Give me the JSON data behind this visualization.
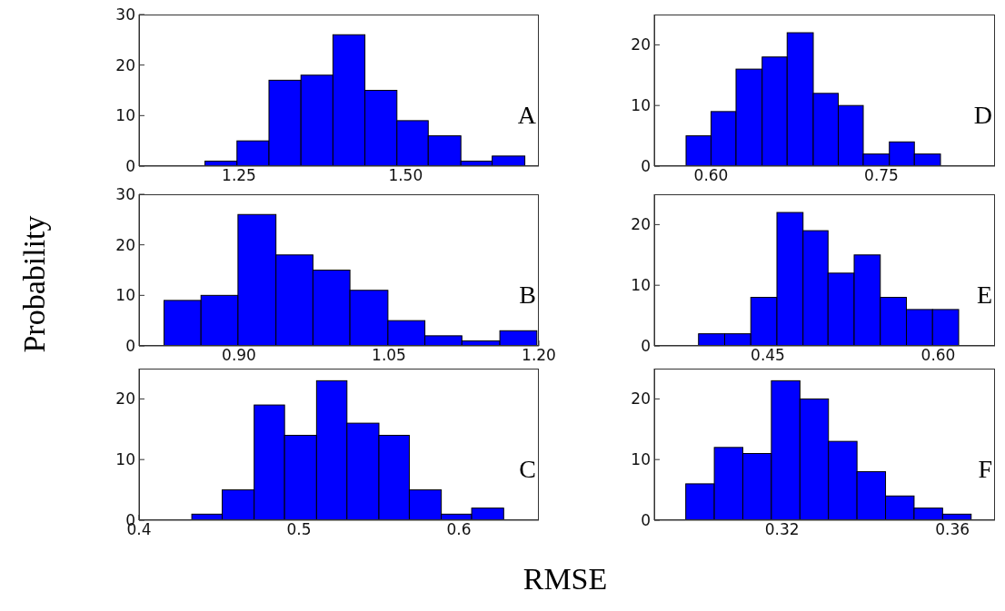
{
  "chart_data": [
    {
      "type": "histogram",
      "xlabel": "RMSE",
      "ylabel": "Probability",
      "annotations": [
        "A"
      ],
      "color": "#0000ff",
      "bins": [
        1.199,
        1.247,
        1.295,
        1.343,
        1.391,
        1.439,
        1.487,
        1.534,
        1.583,
        1.63,
        1.679
      ],
      "values": [
        1,
        5,
        17,
        18,
        26,
        15,
        9,
        6,
        1,
        2
      ],
      "xlim": [
        1.1,
        1.7
      ],
      "xticks": [
        {
          "value": 1.25,
          "label": "1.25"
        },
        {
          "value": 1.5,
          "label": "1.50"
        }
      ],
      "ylim": [
        0,
        30
      ],
      "yticks": [
        0,
        10,
        20,
        30
      ]
    },
    {
      "type": "histogram",
      "annotations": [
        "D"
      ],
      "color": "#0000ff",
      "bins": [
        0.578,
        0.6,
        0.622,
        0.645,
        0.667,
        0.69,
        0.712,
        0.734,
        0.757,
        0.779,
        0.802
      ],
      "values": [
        5,
        9,
        16,
        18,
        22,
        12,
        10,
        2,
        4,
        2
      ],
      "xlim": [
        0.55,
        0.85
      ],
      "xticks": [
        {
          "value": 0.6,
          "label": "0.60"
        },
        {
          "value": 0.75,
          "label": "0.75"
        }
      ],
      "ylim": [
        0,
        25
      ],
      "yticks": [
        0,
        10,
        20
      ]
    },
    {
      "type": "histogram",
      "annotations": [
        "B"
      ],
      "color": "#0000ff",
      "bins": [
        0.825,
        0.862,
        0.899,
        0.937,
        0.974,
        1.011,
        1.049,
        1.086,
        1.123,
        1.161,
        1.198
      ],
      "values": [
        9,
        10,
        26,
        18,
        15,
        11,
        5,
        2,
        1,
        3
      ],
      "xlim": [
        0.8,
        1.2
      ],
      "xticks": [
        {
          "value": 0.9,
          "label": "0.90"
        },
        {
          "value": 1.05,
          "label": "1.05"
        },
        {
          "value": 1.2,
          "label": "1.20"
        }
      ],
      "ylim": [
        0,
        30
      ],
      "yticks": [
        0,
        10,
        20,
        30
      ]
    },
    {
      "type": "histogram",
      "annotations": [
        "E"
      ],
      "color": "#0000ff",
      "bins": [
        0.389,
        0.412,
        0.435,
        0.458,
        0.481,
        0.503,
        0.526,
        0.549,
        0.572,
        0.595,
        0.618
      ],
      "values": [
        2,
        2,
        8,
        22,
        19,
        12,
        15,
        8,
        6,
        6
      ],
      "xlim": [
        0.35,
        0.65
      ],
      "xticks": [
        {
          "value": 0.45,
          "label": "0.45"
        },
        {
          "value": 0.6,
          "label": "0.60"
        }
      ],
      "ylim": [
        0,
        25
      ],
      "yticks": [
        0,
        10,
        20
      ]
    },
    {
      "type": "histogram",
      "annotations": [
        "C"
      ],
      "color": "#0000ff",
      "bins": [
        0.433,
        0.452,
        0.472,
        0.491,
        0.511,
        0.53,
        0.55,
        0.569,
        0.589,
        0.608,
        0.628
      ],
      "values": [
        1,
        5,
        19,
        14,
        23,
        16,
        14,
        5,
        1,
        2
      ],
      "xlim": [
        0.4,
        0.65
      ],
      "xticks": [
        0.4,
        0.5,
        0.6
      ],
      "ylim": [
        0,
        25
      ],
      "yticks": [
        0,
        10,
        20
      ]
    },
    {
      "type": "histogram",
      "annotations": [
        "F"
      ],
      "color": "#0000ff",
      "bins": [
        0.2974,
        0.3041,
        0.3108,
        0.3175,
        0.3242,
        0.3309,
        0.3376,
        0.3443,
        0.351,
        0.3577,
        0.3644
      ],
      "values": [
        6,
        12,
        11,
        23,
        20,
        13,
        8,
        4,
        2,
        1
      ],
      "xlim": [
        0.29,
        0.37
      ],
      "xticks": [
        {
          "value": 0.32,
          "label": "0.32"
        },
        {
          "value": 0.36,
          "label": "0.36"
        }
      ],
      "ylim": [
        0,
        25
      ],
      "yticks": [
        0,
        10,
        20
      ]
    }
  ]
}
